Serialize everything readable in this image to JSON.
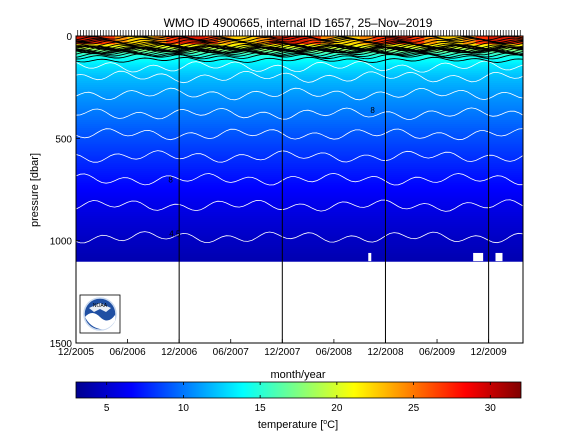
{
  "chart_data": {
    "type": "heatmap",
    "title": "WMO ID 4900665, internal ID 1657, 25–Nov–2019",
    "xlabel": "month/year",
    "ylabel": "pressure [dbar]",
    "x_tick_labels": [
      "12/2005",
      "06/2006",
      "12/2006",
      "06/2007",
      "12/2007",
      "06/2008",
      "12/2008",
      "06/2009",
      "12/2009"
    ],
    "x_ticks_months_since_dec2005": [
      0,
      6,
      12,
      18,
      24,
      30,
      36,
      42,
      48
    ],
    "x_range_months_since_dec2005": [
      0,
      52
    ],
    "y_ticks": [
      0,
      500,
      1000,
      1500
    ],
    "y_tick_labels": [
      "0",
      "500",
      "1000",
      "1500"
    ],
    "ylim": [
      0,
      1500
    ],
    "y_reversed": true,
    "profile_max_pressure_dbar": 1100,
    "year_boundaries_months_since_dec2005": [
      12,
      24,
      36,
      48
    ],
    "temperature_profile": {
      "pressure_dbar": [
        0,
        50,
        80,
        100,
        150,
        200,
        300,
        400,
        500,
        600,
        700,
        800,
        900,
        1000,
        1100
      ],
      "temperature_c": [
        24.5,
        21,
        16,
        14.5,
        13,
        12,
        10.8,
        9.8,
        8.8,
        7.9,
        7.0,
        6.2,
        5.5,
        4.9,
        4.4
      ]
    },
    "contour_labels": [
      {
        "text": "8",
        "x_months": 11,
        "p_dbar": 715
      },
      {
        "text": "8",
        "x_months": 34.5,
        "p_dbar": 375
      },
      {
        "text": "4.5",
        "x_months": 11.5,
        "p_dbar": 980
      }
    ],
    "colorbar": {
      "label": "temperature [",
      "label_unit": "C]",
      "label_degree": "o",
      "range": [
        3,
        32
      ],
      "ticks": [
        5,
        10,
        15,
        20,
        25,
        30
      ],
      "tick_labels": [
        "5",
        "10",
        "15",
        "20",
        "25",
        "30"
      ],
      "colormap": "jet"
    },
    "logo_text": "NOAA"
  }
}
